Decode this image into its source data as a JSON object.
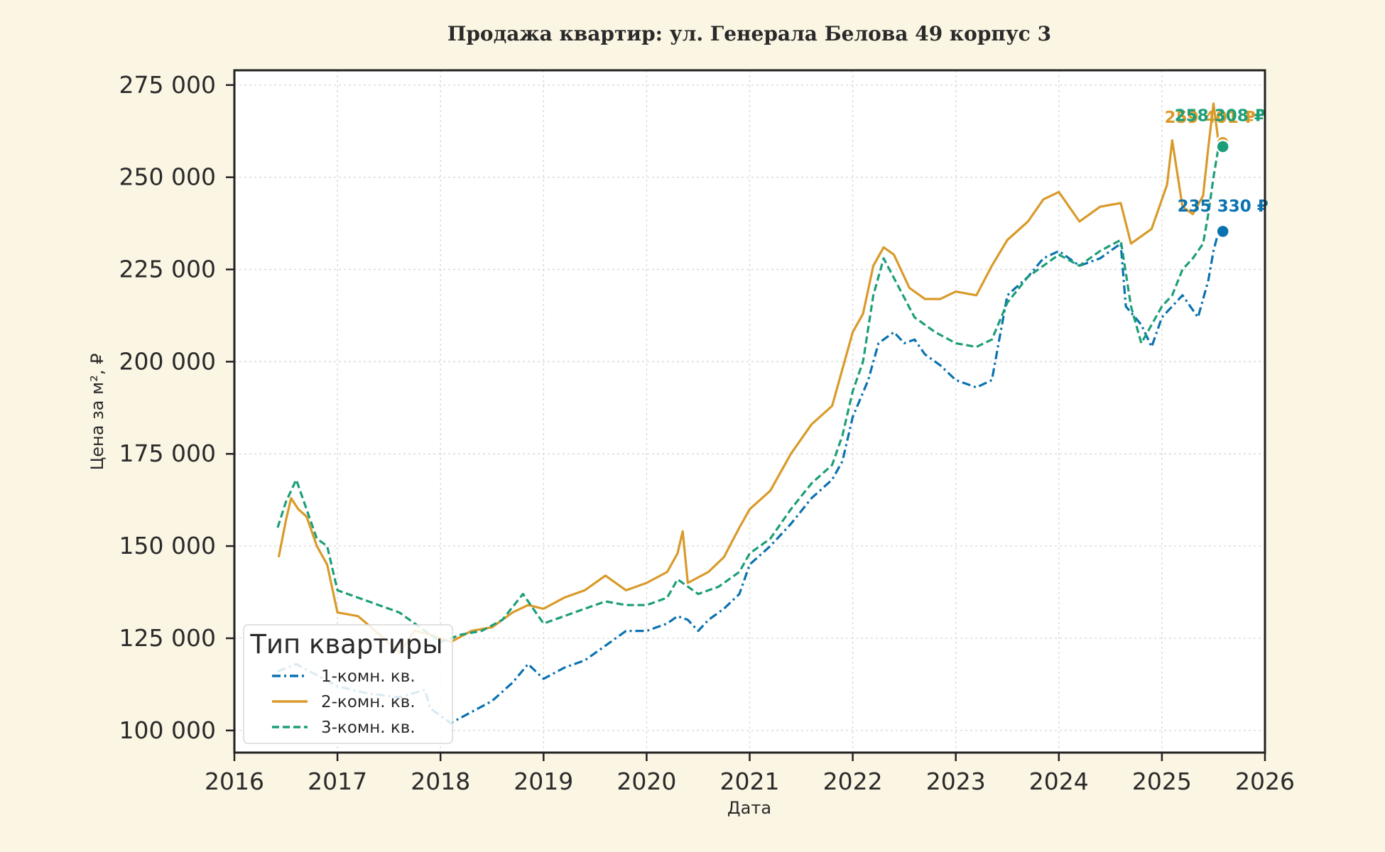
{
  "chart_data": {
    "type": "line",
    "title": "Продажа квартир: ул. Генерала Белова 49 корпус 3",
    "xlabel": "Дата",
    "ylabel": "Цена за м², ₽",
    "xlim": [
      2016.0,
      2026.0
    ],
    "ylim": [
      94000,
      279000
    ],
    "x_ticks": [
      2016,
      2017,
      2018,
      2019,
      2020,
      2021,
      2022,
      2023,
      2024,
      2025,
      2026
    ],
    "x_tick_labels": [
      "2016",
      "2017",
      "2018",
      "2019",
      "2020",
      "2021",
      "2022",
      "2023",
      "2024",
      "2025",
      "2026"
    ],
    "y_ticks": [
      100000,
      125000,
      150000,
      175000,
      200000,
      225000,
      250000,
      275000
    ],
    "y_tick_labels": [
      "100 000",
      "125 000",
      "150 000",
      "175 000",
      "200 000",
      "225 000",
      "250 000",
      "275 000"
    ],
    "grid": true,
    "legend": {
      "title": "Тип квартиры",
      "position": "lower-left"
    },
    "series": [
      {
        "name": "1-комн. кв.",
        "color": "#0a72b0",
        "dash": "dash-dot",
        "end_label": "235 330 ₽",
        "end_value": 235330,
        "points": [
          [
            2016.42,
            116000
          ],
          [
            2016.6,
            118000
          ],
          [
            2016.8,
            115000
          ],
          [
            2017.0,
            112000
          ],
          [
            2017.3,
            110000
          ],
          [
            2017.6,
            109000
          ],
          [
            2017.85,
            111000
          ],
          [
            2017.9,
            106000
          ],
          [
            2018.1,
            102000
          ],
          [
            2018.3,
            105000
          ],
          [
            2018.5,
            108000
          ],
          [
            2018.7,
            113000
          ],
          [
            2018.85,
            118000
          ],
          [
            2019.0,
            114000
          ],
          [
            2019.2,
            117000
          ],
          [
            2019.4,
            119000
          ],
          [
            2019.6,
            123000
          ],
          [
            2019.8,
            127000
          ],
          [
            2020.0,
            127000
          ],
          [
            2020.2,
            129000
          ],
          [
            2020.3,
            131000
          ],
          [
            2020.4,
            130000
          ],
          [
            2020.5,
            127000
          ],
          [
            2020.6,
            130000
          ],
          [
            2020.75,
            133000
          ],
          [
            2020.9,
            137000
          ],
          [
            2021.0,
            145000
          ],
          [
            2021.2,
            150000
          ],
          [
            2021.4,
            156000
          ],
          [
            2021.6,
            163000
          ],
          [
            2021.8,
            168000
          ],
          [
            2021.9,
            173000
          ],
          [
            2022.0,
            185000
          ],
          [
            2022.15,
            195000
          ],
          [
            2022.25,
            205000
          ],
          [
            2022.4,
            208000
          ],
          [
            2022.5,
            205000
          ],
          [
            2022.6,
            206000
          ],
          [
            2022.7,
            202000
          ],
          [
            2022.85,
            199000
          ],
          [
            2023.0,
            195000
          ],
          [
            2023.2,
            193000
          ],
          [
            2023.35,
            195000
          ],
          [
            2023.5,
            218000
          ],
          [
            2023.7,
            223000
          ],
          [
            2023.85,
            228000
          ],
          [
            2024.0,
            230000
          ],
          [
            2024.2,
            226000
          ],
          [
            2024.4,
            228000
          ],
          [
            2024.6,
            232000
          ],
          [
            2024.65,
            215000
          ],
          [
            2024.8,
            210000
          ],
          [
            2024.9,
            204000
          ],
          [
            2025.0,
            212000
          ],
          [
            2025.2,
            218000
          ],
          [
            2025.35,
            212000
          ],
          [
            2025.45,
            222000
          ],
          [
            2025.5,
            230000
          ],
          [
            2025.55,
            235330
          ]
        ]
      },
      {
        "name": "2-комн. кв.",
        "color": "#d99a29",
        "dash": "solid",
        "end_label": "259 401 ₽",
        "end_value": 259401,
        "points": [
          [
            2016.43,
            147000
          ],
          [
            2016.5,
            157000
          ],
          [
            2016.55,
            163000
          ],
          [
            2016.62,
            160000
          ],
          [
            2016.7,
            158000
          ],
          [
            2016.8,
            150000
          ],
          [
            2016.9,
            145000
          ],
          [
            2017.0,
            132000
          ],
          [
            2017.2,
            131000
          ],
          [
            2017.45,
            125000
          ],
          [
            2017.6,
            121000
          ],
          [
            2017.75,
            127000
          ],
          [
            2017.9,
            126000
          ],
          [
            2018.1,
            124000
          ],
          [
            2018.3,
            127000
          ],
          [
            2018.5,
            128000
          ],
          [
            2018.7,
            132000
          ],
          [
            2018.85,
            134000
          ],
          [
            2019.0,
            133000
          ],
          [
            2019.2,
            136000
          ],
          [
            2019.4,
            138000
          ],
          [
            2019.6,
            142000
          ],
          [
            2019.8,
            138000
          ],
          [
            2020.0,
            140000
          ],
          [
            2020.2,
            143000
          ],
          [
            2020.3,
            148000
          ],
          [
            2020.35,
            154000
          ],
          [
            2020.4,
            140000
          ],
          [
            2020.6,
            143000
          ],
          [
            2020.75,
            147000
          ],
          [
            2020.9,
            155000
          ],
          [
            2021.0,
            160000
          ],
          [
            2021.2,
            165000
          ],
          [
            2021.4,
            175000
          ],
          [
            2021.6,
            183000
          ],
          [
            2021.8,
            188000
          ],
          [
            2021.9,
            198000
          ],
          [
            2022.0,
            208000
          ],
          [
            2022.1,
            213000
          ],
          [
            2022.2,
            226000
          ],
          [
            2022.3,
            231000
          ],
          [
            2022.4,
            229000
          ],
          [
            2022.55,
            220000
          ],
          [
            2022.7,
            217000
          ],
          [
            2022.85,
            217000
          ],
          [
            2023.0,
            219000
          ],
          [
            2023.2,
            218000
          ],
          [
            2023.35,
            226000
          ],
          [
            2023.5,
            233000
          ],
          [
            2023.7,
            238000
          ],
          [
            2023.85,
            244000
          ],
          [
            2024.0,
            246000
          ],
          [
            2024.2,
            238000
          ],
          [
            2024.4,
            242000
          ],
          [
            2024.6,
            243000
          ],
          [
            2024.7,
            232000
          ],
          [
            2024.9,
            236000
          ],
          [
            2025.05,
            248000
          ],
          [
            2025.1,
            260000
          ],
          [
            2025.2,
            242000
          ],
          [
            2025.3,
            240000
          ],
          [
            2025.4,
            245000
          ],
          [
            2025.45,
            258000
          ],
          [
            2025.5,
            270000
          ],
          [
            2025.55,
            259401
          ]
        ]
      },
      {
        "name": "3-комн. кв.",
        "color": "#1c9e78",
        "dash": "dashed",
        "end_label": "258 308 ₽",
        "end_value": 258308,
        "points": [
          [
            2016.42,
            155000
          ],
          [
            2016.5,
            162000
          ],
          [
            2016.6,
            168000
          ],
          [
            2016.7,
            160000
          ],
          [
            2016.8,
            152000
          ],
          [
            2016.9,
            150000
          ],
          [
            2017.0,
            138000
          ],
          [
            2017.2,
            136000
          ],
          [
            2017.4,
            134000
          ],
          [
            2017.6,
            132000
          ],
          [
            2017.8,
            128000
          ],
          [
            2018.0,
            124000
          ],
          [
            2018.2,
            126000
          ],
          [
            2018.4,
            127000
          ],
          [
            2018.6,
            130000
          ],
          [
            2018.8,
            137000
          ],
          [
            2019.0,
            129000
          ],
          [
            2019.2,
            131000
          ],
          [
            2019.4,
            133000
          ],
          [
            2019.6,
            135000
          ],
          [
            2019.8,
            134000
          ],
          [
            2020.0,
            134000
          ],
          [
            2020.2,
            136000
          ],
          [
            2020.3,
            141000
          ],
          [
            2020.5,
            137000
          ],
          [
            2020.7,
            139000
          ],
          [
            2020.9,
            143000
          ],
          [
            2021.0,
            148000
          ],
          [
            2021.2,
            152000
          ],
          [
            2021.4,
            160000
          ],
          [
            2021.6,
            167000
          ],
          [
            2021.8,
            172000
          ],
          [
            2021.9,
            180000
          ],
          [
            2022.0,
            192000
          ],
          [
            2022.1,
            200000
          ],
          [
            2022.2,
            218000
          ],
          [
            2022.3,
            228000
          ],
          [
            2022.45,
            220000
          ],
          [
            2022.6,
            212000
          ],
          [
            2022.8,
            208000
          ],
          [
            2023.0,
            205000
          ],
          [
            2023.2,
            204000
          ],
          [
            2023.35,
            206000
          ],
          [
            2023.5,
            216000
          ],
          [
            2023.7,
            223000
          ],
          [
            2023.85,
            226000
          ],
          [
            2024.0,
            229000
          ],
          [
            2024.2,
            226000
          ],
          [
            2024.4,
            230000
          ],
          [
            2024.6,
            233000
          ],
          [
            2024.7,
            215000
          ],
          [
            2024.8,
            205000
          ],
          [
            2024.9,
            210000
          ],
          [
            2025.0,
            215000
          ],
          [
            2025.1,
            218000
          ],
          [
            2025.2,
            225000
          ],
          [
            2025.3,
            228000
          ],
          [
            2025.4,
            232000
          ],
          [
            2025.45,
            240000
          ],
          [
            2025.5,
            250000
          ],
          [
            2025.55,
            258308
          ]
        ]
      }
    ]
  }
}
